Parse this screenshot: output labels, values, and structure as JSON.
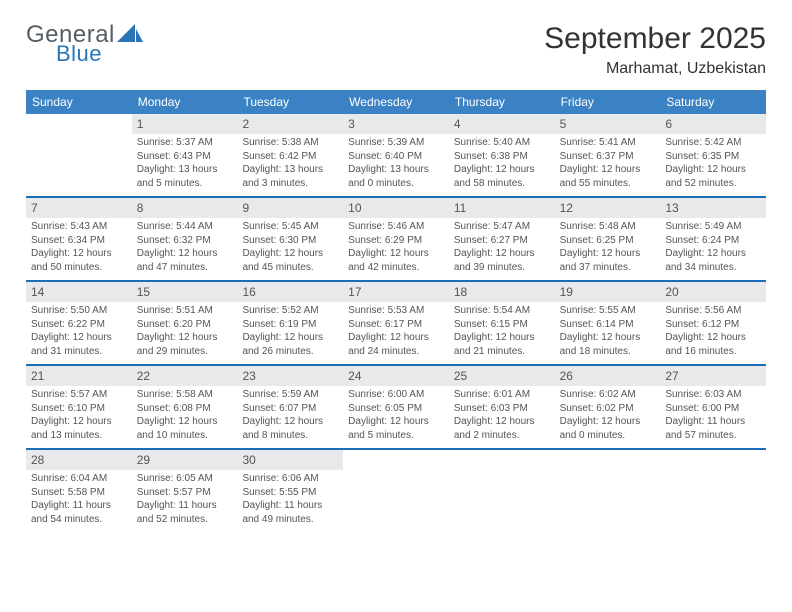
{
  "logo": {
    "word1": "General",
    "word2": "Blue"
  },
  "title": "September 2025",
  "subtitle": "Marhamat, Uzbekistan",
  "colors": {
    "header_blue": "#3b82c4",
    "daynum_bg": "#e8e9ea",
    "week_border": "#1e6bb8",
    "text": "#333333",
    "muted": "#555555"
  },
  "dow": [
    "Sunday",
    "Monday",
    "Tuesday",
    "Wednesday",
    "Thursday",
    "Friday",
    "Saturday"
  ],
  "start_blanks": 1,
  "days": [
    {
      "n": 1,
      "sr": "5:37 AM",
      "ss": "6:43 PM",
      "dl": "13 hours and 5 minutes."
    },
    {
      "n": 2,
      "sr": "5:38 AM",
      "ss": "6:42 PM",
      "dl": "13 hours and 3 minutes."
    },
    {
      "n": 3,
      "sr": "5:39 AM",
      "ss": "6:40 PM",
      "dl": "13 hours and 0 minutes."
    },
    {
      "n": 4,
      "sr": "5:40 AM",
      "ss": "6:38 PM",
      "dl": "12 hours and 58 minutes."
    },
    {
      "n": 5,
      "sr": "5:41 AM",
      "ss": "6:37 PM",
      "dl": "12 hours and 55 minutes."
    },
    {
      "n": 6,
      "sr": "5:42 AM",
      "ss": "6:35 PM",
      "dl": "12 hours and 52 minutes."
    },
    {
      "n": 7,
      "sr": "5:43 AM",
      "ss": "6:34 PM",
      "dl": "12 hours and 50 minutes."
    },
    {
      "n": 8,
      "sr": "5:44 AM",
      "ss": "6:32 PM",
      "dl": "12 hours and 47 minutes."
    },
    {
      "n": 9,
      "sr": "5:45 AM",
      "ss": "6:30 PM",
      "dl": "12 hours and 45 minutes."
    },
    {
      "n": 10,
      "sr": "5:46 AM",
      "ss": "6:29 PM",
      "dl": "12 hours and 42 minutes."
    },
    {
      "n": 11,
      "sr": "5:47 AM",
      "ss": "6:27 PM",
      "dl": "12 hours and 39 minutes."
    },
    {
      "n": 12,
      "sr": "5:48 AM",
      "ss": "6:25 PM",
      "dl": "12 hours and 37 minutes."
    },
    {
      "n": 13,
      "sr": "5:49 AM",
      "ss": "6:24 PM",
      "dl": "12 hours and 34 minutes."
    },
    {
      "n": 14,
      "sr": "5:50 AM",
      "ss": "6:22 PM",
      "dl": "12 hours and 31 minutes."
    },
    {
      "n": 15,
      "sr": "5:51 AM",
      "ss": "6:20 PM",
      "dl": "12 hours and 29 minutes."
    },
    {
      "n": 16,
      "sr": "5:52 AM",
      "ss": "6:19 PM",
      "dl": "12 hours and 26 minutes."
    },
    {
      "n": 17,
      "sr": "5:53 AM",
      "ss": "6:17 PM",
      "dl": "12 hours and 24 minutes."
    },
    {
      "n": 18,
      "sr": "5:54 AM",
      "ss": "6:15 PM",
      "dl": "12 hours and 21 minutes."
    },
    {
      "n": 19,
      "sr": "5:55 AM",
      "ss": "6:14 PM",
      "dl": "12 hours and 18 minutes."
    },
    {
      "n": 20,
      "sr": "5:56 AM",
      "ss": "6:12 PM",
      "dl": "12 hours and 16 minutes."
    },
    {
      "n": 21,
      "sr": "5:57 AM",
      "ss": "6:10 PM",
      "dl": "12 hours and 13 minutes."
    },
    {
      "n": 22,
      "sr": "5:58 AM",
      "ss": "6:08 PM",
      "dl": "12 hours and 10 minutes."
    },
    {
      "n": 23,
      "sr": "5:59 AM",
      "ss": "6:07 PM",
      "dl": "12 hours and 8 minutes."
    },
    {
      "n": 24,
      "sr": "6:00 AM",
      "ss": "6:05 PM",
      "dl": "12 hours and 5 minutes."
    },
    {
      "n": 25,
      "sr": "6:01 AM",
      "ss": "6:03 PM",
      "dl": "12 hours and 2 minutes."
    },
    {
      "n": 26,
      "sr": "6:02 AM",
      "ss": "6:02 PM",
      "dl": "12 hours and 0 minutes."
    },
    {
      "n": 27,
      "sr": "6:03 AM",
      "ss": "6:00 PM",
      "dl": "11 hours and 57 minutes."
    },
    {
      "n": 28,
      "sr": "6:04 AM",
      "ss": "5:58 PM",
      "dl": "11 hours and 54 minutes."
    },
    {
      "n": 29,
      "sr": "6:05 AM",
      "ss": "5:57 PM",
      "dl": "11 hours and 52 minutes."
    },
    {
      "n": 30,
      "sr": "6:06 AM",
      "ss": "5:55 PM",
      "dl": "11 hours and 49 minutes."
    }
  ],
  "labels": {
    "sunrise": "Sunrise:",
    "sunset": "Sunset:",
    "daylight": "Daylight:"
  }
}
